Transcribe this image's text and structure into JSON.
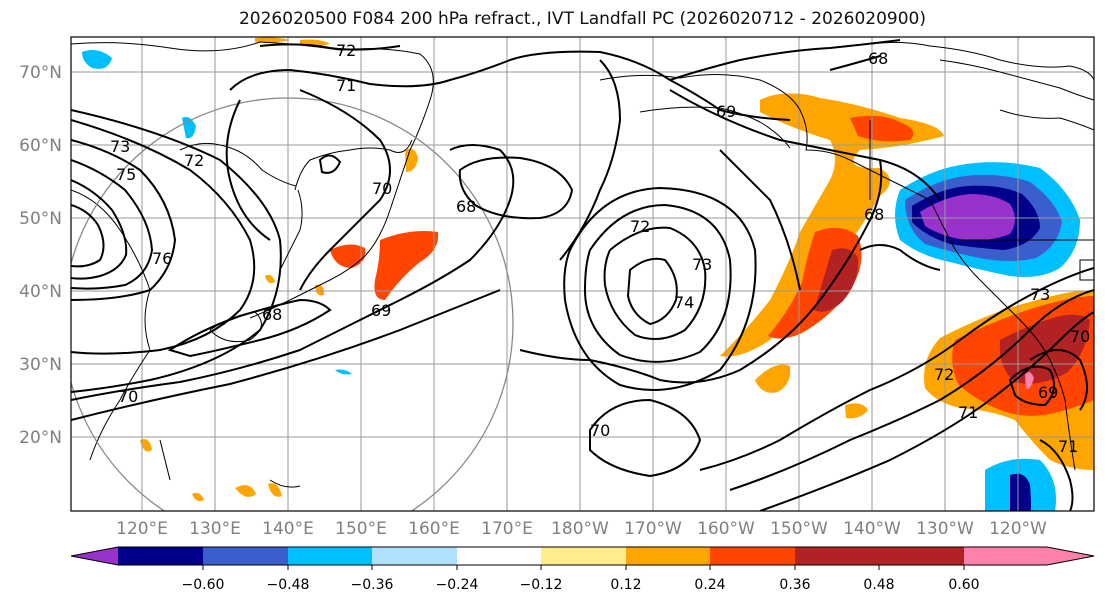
{
  "title": "2026020500 F084 200 hPa refract., IVT Landfall PC (2026020712 - 2026020900)",
  "lat_labels": [
    "70°N",
    "60°N",
    "50°N",
    "40°N",
    "30°N",
    "20°N"
  ],
  "lon_labels": [
    "120°E",
    "130°E",
    "140°E",
    "150°E",
    "160°E",
    "170°E",
    "180°W",
    "170°W",
    "160°W",
    "150°W",
    "140°W",
    "130°W",
    "120°W"
  ],
  "contour_labels": [
    {
      "text": "72"
    },
    {
      "text": "71"
    },
    {
      "text": "69"
    },
    {
      "text": "68"
    },
    {
      "text": "73"
    },
    {
      "text": "72"
    },
    {
      "text": "75"
    },
    {
      "text": "76"
    },
    {
      "text": "70"
    },
    {
      "text": "68"
    },
    {
      "text": "68"
    },
    {
      "text": "69"
    },
    {
      "text": "72"
    },
    {
      "text": "73"
    },
    {
      "text": "74"
    },
    {
      "text": "70"
    },
    {
      "text": "70"
    },
    {
      "text": "68"
    },
    {
      "text": "72"
    },
    {
      "text": "71"
    },
    {
      "text": "73"
    },
    {
      "text": "69"
    },
    {
      "text": "70"
    },
    {
      "text": "71"
    }
  ],
  "colorbar": {
    "colors": [
      "#9932cc",
      "#00008b",
      "#3a5fcd",
      "#00bfff",
      "#b0e2ff",
      "#ffffff",
      "#ffec8b",
      "#ffa500",
      "#ff4500",
      "#b22222",
      "#ff82ab"
    ],
    "tick_labels": [
      "−0.60",
      "−0.48",
      "−0.36",
      "−0.24",
      "−0.12",
      "0.12",
      "0.24",
      "0.36",
      "0.48",
      "0.60"
    ]
  },
  "colors": {
    "axis_label": "#808080",
    "contour": "#000000",
    "grid": "#999999"
  }
}
